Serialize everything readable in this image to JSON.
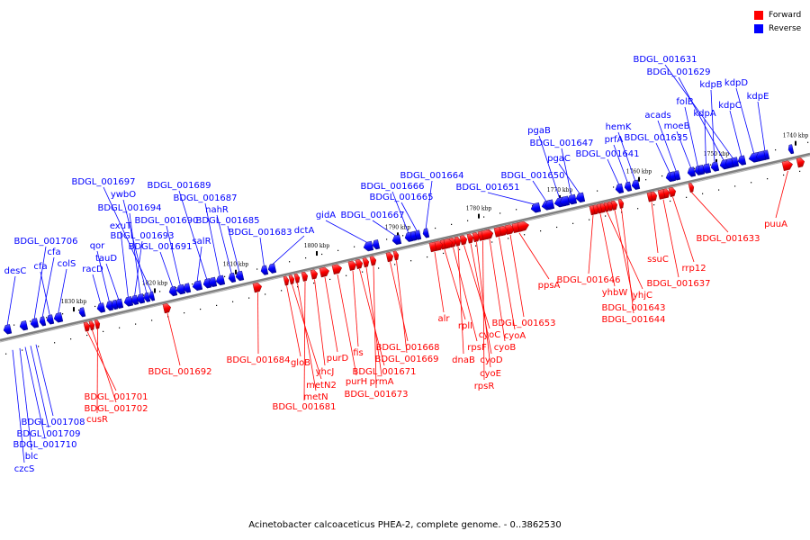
{
  "caption": "Acinetobacter calcoaceticus PHEA-2, complete genome. - 0..3862530",
  "legend": {
    "forward_label": "Forward",
    "reverse_label": "Reverse",
    "forward_color": "#ff0000",
    "reverse_color": "#0000ff"
  },
  "backbone_color": "#808080",
  "tick_labels": [
    "1830 kbp",
    "1820 kbp",
    "1810 kbp",
    "1800 kbp",
    "1790 kbp",
    "1780 kbp",
    "1770 kbp",
    "1760 kbp",
    "1750 kbp",
    "1740 kbp"
  ],
  "reverse_genes": [
    "desC",
    "BDGL_001706",
    "cfa",
    "cfa",
    "colS",
    "racD",
    "qor",
    "tauD",
    "exuT",
    "BDGL_001693",
    "BDGL_001694",
    "ywbO",
    "BDGL_001697",
    "BDGL_001691",
    "BDGL_001690",
    "salR",
    "BDGL_001689",
    "BDGL_001687",
    "nahR",
    "BDGL_001685",
    "BDGL_001683",
    "dctA",
    "gidA",
    "BDGL_001667",
    "BDGL_001666",
    "BDGL_001665",
    "BDGL_001664",
    "BDGL_001651",
    "BDGL_001650",
    "pgaB",
    "BDGL_001647",
    "pgaC",
    "BDGL_001641",
    "prfA",
    "hemK",
    "BDGL_001635",
    "acads",
    "moeB",
    "folB",
    "kdpA",
    "kdpB",
    "BDGL_001629",
    "BDGL_001631",
    "kdpC",
    "kdpD",
    "kdpE"
  ],
  "forward_genes": [
    "BDGL_001701",
    "BDGL_001702",
    "cusR",
    "BDGL_001692",
    "BDGL_001684",
    "gloB",
    "metN2",
    "metN",
    "BDGL_001681",
    "yhcJ",
    "purD",
    "purH",
    "fis",
    "BDGL_001671",
    "prmA",
    "BDGL_001673",
    "BDGL_001668",
    "BDGL_001669",
    "alr",
    "rplI",
    "rpsF",
    "dnaB",
    "cyoC",
    "cyoD",
    "cyoE",
    "rpsR",
    "cyoB",
    "cyoA",
    "BDGL_001653",
    "ppsA",
    "BDGL_001646",
    "yhbW",
    "yhjC",
    "BDGL_001643",
    "BDGL_001644",
    "ssuC",
    "BDGL_001637",
    "rrp12",
    "BDGL_001633",
    "puuA"
  ],
  "bottom_reverse_genes": [
    "BDGL_001708",
    "BDGL_001709",
    "BDGL_001710",
    "blc",
    "czcS"
  ]
}
